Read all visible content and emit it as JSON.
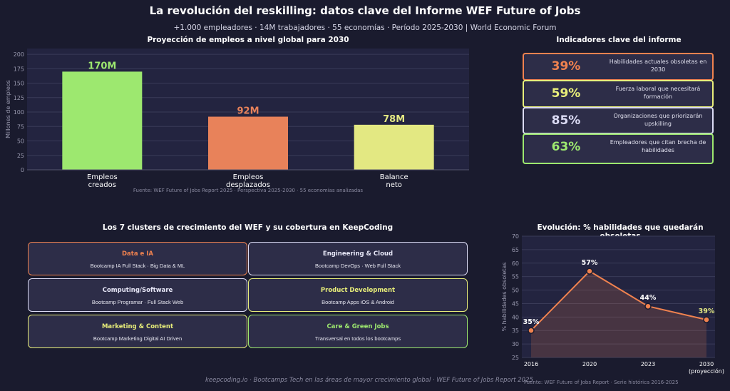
{
  "header": {
    "title": "La revolución del reskilling: datos clave del Informe WEF Future of Jobs",
    "subtitle": "+1.000 empleadores · 14M trabajadores · 55 economías · Período 2025-2030 | World Economic Forum"
  },
  "chart_data": [
    {
      "type": "bar",
      "title": "Proyección de empleos a nivel global para 2030",
      "ylabel": "Millones de empleos",
      "ylim": [
        0,
        210
      ],
      "yticks": [
        0,
        25,
        50,
        75,
        100,
        125,
        150,
        175,
        200
      ],
      "categories": [
        [
          "Empleos",
          "creados"
        ],
        [
          "Empleos",
          "desplazados"
        ],
        [
          "Balance",
          "neto"
        ]
      ],
      "values": [
        170,
        92,
        78
      ],
      "data_labels": [
        "170M",
        "92M",
        "78M"
      ],
      "colors": [
        "#9de86f",
        "#e8825a",
        "#e3e882"
      ],
      "grid": true,
      "source": "Fuente: WEF Future of Jobs Report 2025 · Perspectiva 2025-2030 · 55 economías analizadas"
    },
    {
      "type": "line",
      "title": "Evolución: % habilidades que quedarán obsoletas",
      "ylabel": "% habilidades obsoletas",
      "ylim": [
        25,
        70
      ],
      "yticks": [
        25,
        30,
        35,
        40,
        45,
        50,
        55,
        60,
        65,
        70
      ],
      "x": [
        [
          "2016"
        ],
        [
          "2020"
        ],
        [
          "2023"
        ],
        [
          "2030",
          "(proyección)"
        ]
      ],
      "values": [
        35,
        57,
        44,
        39
      ],
      "data_labels": [
        "35%",
        "57%",
        "44%",
        "39%"
      ],
      "label_colors": [
        "#ffffff",
        "#ffffff",
        "#ffffff",
        "#e3e882"
      ],
      "color": "#f0824f",
      "area": true,
      "grid": true,
      "source": "Fuente: WEF Future of Jobs Report · Serie histórica 2016-2025"
    }
  ],
  "indicators": {
    "title": "Indicadores clave del informe",
    "items": [
      {
        "value": "39%",
        "label": "Habilidades actuales obsoletas en 2030",
        "color": "#f0824f"
      },
      {
        "value": "59%",
        "label": "Fuerza laboral que necesitará formación",
        "color": "#e8ee7a"
      },
      {
        "value": "85%",
        "label": "Organizaciones que priorizarán upskilling",
        "color": "#dcdcf5"
      },
      {
        "value": "63%",
        "label": "Empleadores que citan brecha de habilidades",
        "color": "#9de86f"
      }
    ]
  },
  "clusters": {
    "title": "Los 7 clusters de crecimiento del WEF y su cobertura en KeepCoding",
    "items": [
      {
        "name": "Data e IA",
        "desc": "Bootcamp IA Full Stack · Big Data & ML",
        "color": "#f0824f"
      },
      {
        "name": "Engineering & Cloud",
        "desc": "Bootcamp DevOps · Web Full Stack",
        "color": "#dcdcf5"
      },
      {
        "name": "Computing/Software",
        "desc": "Bootcamp Programar · Full Stack Web",
        "color": "#dcdcf5"
      },
      {
        "name": "Product Development",
        "desc": "Bootcamp Apps iOS & Android",
        "color": "#e8ee7a"
      },
      {
        "name": "Marketing & Content",
        "desc": "Bootcamp Marketing Digital AI Driven",
        "color": "#e8ee7a"
      },
      {
        "name": "Care & Green Jobs",
        "desc": "Transversal en todos los bootcamps",
        "color": "#9de86f"
      }
    ]
  },
  "footer": "keepcoding.io  ·  Bootcamps Tech en las áreas de mayor crecimiento global  ·  WEF Future of Jobs Report 2025"
}
